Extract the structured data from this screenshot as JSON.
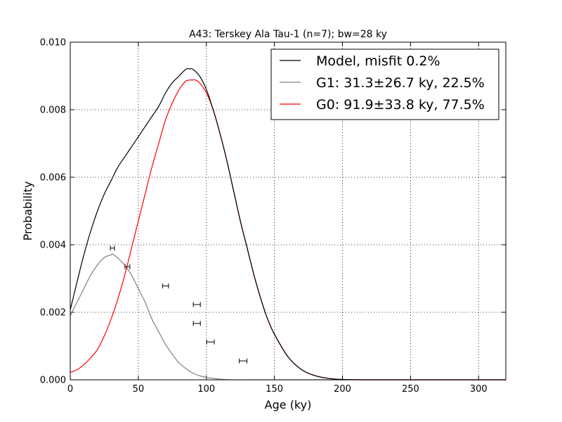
{
  "chart_data": {
    "type": "line",
    "title": "A43: Terskey Ala Tau-1 (n=7); bw=28 ky",
    "xlabel": "Age (ky)",
    "ylabel": "Probability",
    "xlim": [
      0,
      320
    ],
    "ylim": [
      0,
      0.01
    ],
    "x_ticks": [
      0,
      50,
      100,
      150,
      200,
      250,
      300
    ],
    "x_tick_labels": [
      "0",
      "50",
      "100",
      "150",
      "200",
      "250",
      "300"
    ],
    "y_ticks": [
      0,
      0.002,
      0.004,
      0.006,
      0.008,
      0.01
    ],
    "y_tick_labels": [
      "0.000",
      "0.002",
      "0.004",
      "0.006",
      "0.008",
      "0.010"
    ],
    "grid": true,
    "grid_style": "dotted",
    "legend_position": "top-right",
    "series": [
      {
        "name": "Model, misfit 0.2%",
        "color": "#000000",
        "x": [
          0,
          5,
          10,
          15,
          20,
          25,
          30,
          35,
          40,
          45,
          50,
          55,
          60,
          65,
          70,
          75,
          80,
          85,
          88,
          90,
          95,
          100,
          105,
          110,
          115,
          120,
          125,
          130,
          135,
          140,
          145,
          150,
          160,
          170,
          180,
          190,
          200,
          220,
          250,
          320
        ],
        "y": [
          0.00207,
          0.0029,
          0.0037,
          0.0044,
          0.005,
          0.0055,
          0.0059,
          0.0063,
          0.0066,
          0.0069,
          0.0072,
          0.0075,
          0.0078,
          0.0081,
          0.0085,
          0.0088,
          0.009,
          0.0092,
          0.00921,
          0.0092,
          0.009,
          0.0086,
          0.008,
          0.0073,
          0.0065,
          0.0056,
          0.0047,
          0.0039,
          0.0031,
          0.0024,
          0.0018,
          0.00135,
          0.00068,
          0.0003,
          0.00012,
          4e-05,
          1e-05,
          0.0,
          0.0,
          0.0
        ]
      },
      {
        "name": "G1: 31.3±26.7 ky, 22.5%",
        "color": "#808080",
        "x": [
          0,
          5,
          10,
          15,
          20,
          25,
          30,
          31.3,
          35,
          40,
          45,
          50,
          55,
          60,
          65,
          70,
          75,
          80,
          85,
          90,
          95,
          100,
          110,
          120,
          130,
          150,
          200,
          320
        ],
        "y": [
          0.0019,
          0.0023,
          0.0027,
          0.0031,
          0.0034,
          0.00362,
          0.0037,
          0.00372,
          0.0036,
          0.0034,
          0.0031,
          0.0027,
          0.0023,
          0.0018,
          0.00142,
          0.00105,
          0.00075,
          0.0005,
          0.00033,
          0.0002,
          0.00012,
          7e-05,
          2e-05,
          0.0,
          0.0,
          0.0,
          0.0,
          0.0
        ]
      },
      {
        "name": "G0: 91.9±33.8 ky, 77.5%",
        "color": "#ff0000",
        "x": [
          0,
          5,
          10,
          15,
          20,
          25,
          30,
          35,
          40,
          45,
          50,
          55,
          60,
          65,
          70,
          75,
          80,
          85,
          90,
          92,
          95,
          100,
          105,
          110,
          115,
          120,
          125,
          130,
          135,
          140,
          145,
          150,
          160,
          170,
          180,
          190,
          200,
          220,
          250,
          320
        ],
        "y": [
          0.00022,
          0.0003,
          0.00045,
          0.00065,
          0.0009,
          0.0013,
          0.0018,
          0.0024,
          0.0031,
          0.0039,
          0.0047,
          0.0055,
          0.0063,
          0.007,
          0.0077,
          0.0082,
          0.0086,
          0.00885,
          0.00888,
          0.00888,
          0.0088,
          0.0085,
          0.008,
          0.0073,
          0.0065,
          0.0056,
          0.0047,
          0.0039,
          0.0031,
          0.0024,
          0.0018,
          0.00135,
          0.00068,
          0.0003,
          0.00012,
          4e-05,
          1e-05,
          0.0,
          0.0,
          0.0
        ]
      }
    ],
    "error_points": [
      {
        "x": 31.0,
        "y": 0.0039,
        "xerr": 1.5
      },
      {
        "x": 42.0,
        "y": 0.00335,
        "xerr": 1.8
      },
      {
        "x": 70.0,
        "y": 0.00278,
        "xerr": 2.2
      },
      {
        "x": 93.0,
        "y": 0.00223,
        "xerr": 2.6
      },
      {
        "x": 93.0,
        "y": 0.00167,
        "xerr": 2.6
      },
      {
        "x": 103.0,
        "y": 0.00112,
        "xerr": 2.8
      },
      {
        "x": 127.0,
        "y": 0.00056,
        "xerr": 2.8
      }
    ]
  }
}
